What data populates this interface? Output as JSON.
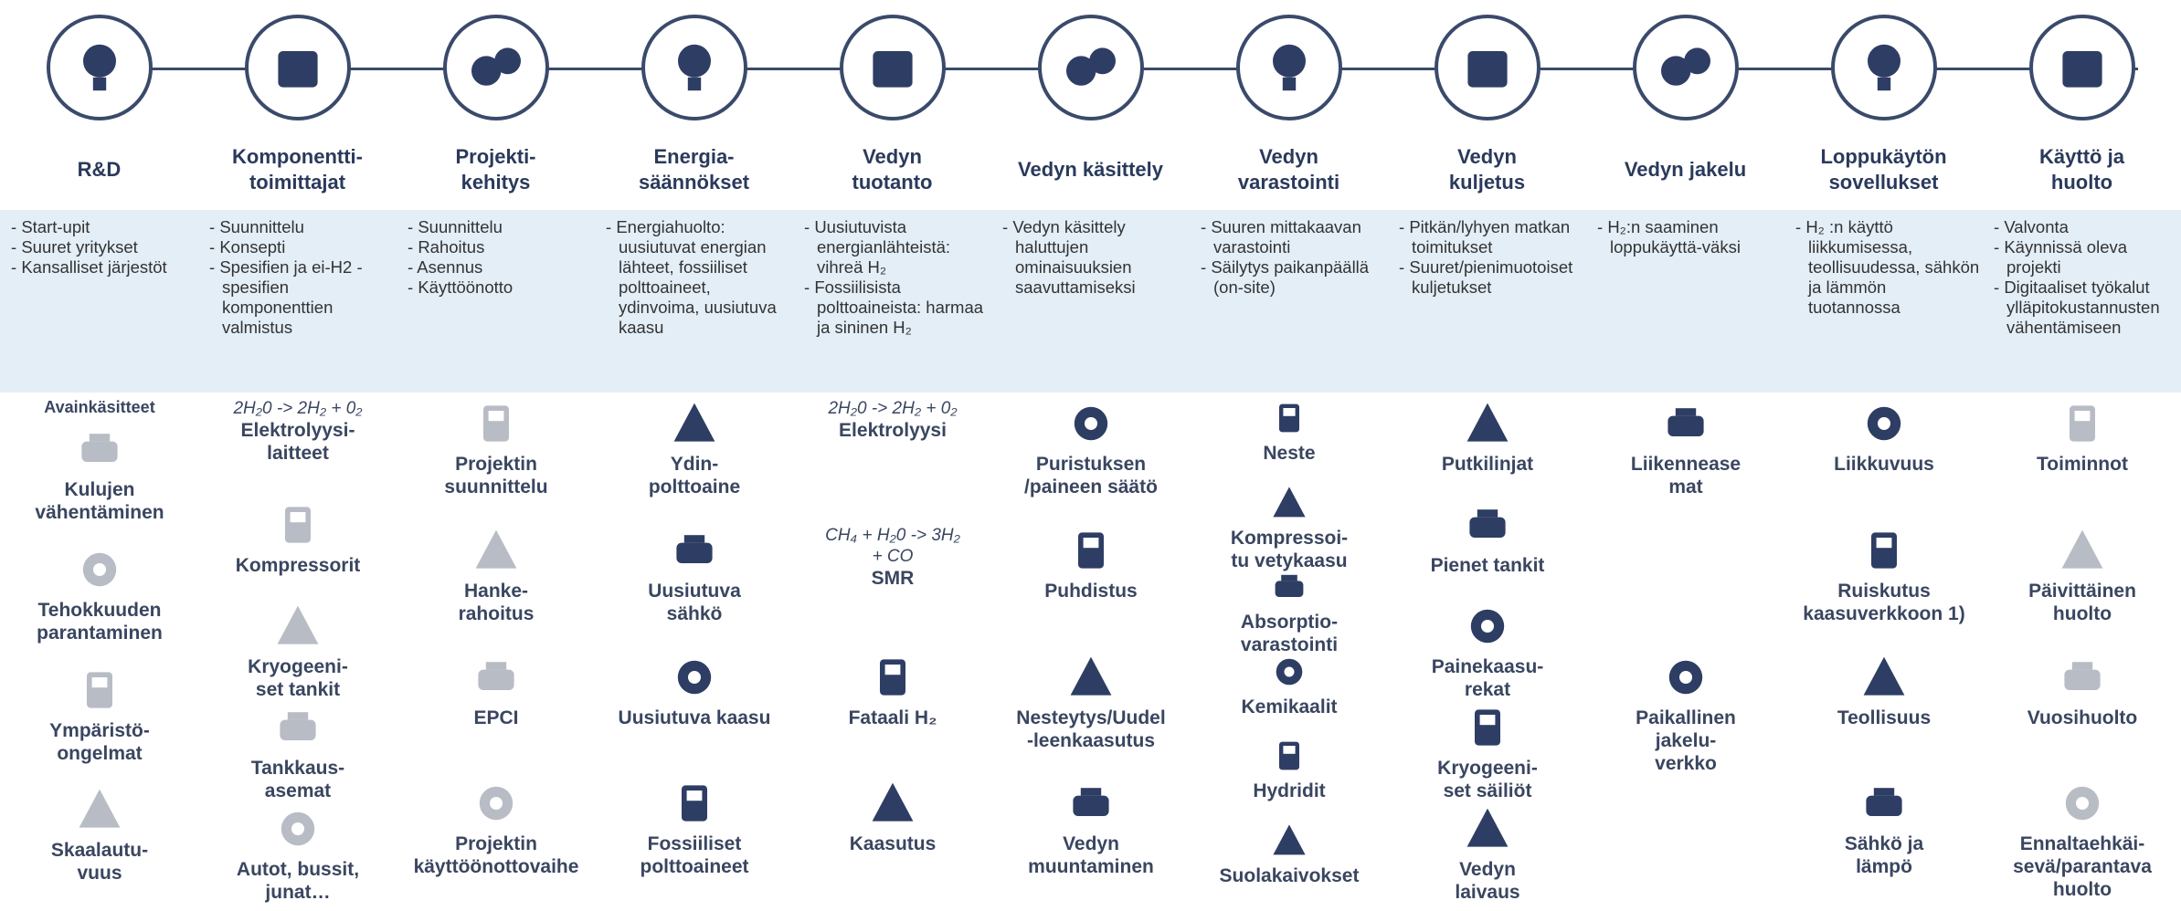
{
  "stages": [
    {
      "title": "R&D",
      "header": "Avainkäsitteet",
      "bullets": [
        "Start-upit",
        "Suuret yritykset",
        "Kansalliset järjestöt"
      ],
      "items": [
        {
          "label": "Kulujen\nvähentäminen"
        },
        {
          "label": "Tehokkuuden\nparantaminen"
        },
        {
          "label": "Ympäristö-\nongelmat"
        },
        {
          "label": "Skaalautu-\nvuus"
        }
      ]
    },
    {
      "title": "Komponentti-\ntoimittajat",
      "bullets": [
        "Suunnittelu",
        "Konsepti",
        "Spesifien ja ei-H2 -spesifien komponenttien valmistus"
      ],
      "items": [
        {
          "formula": "2H₂0 -> 2H₂ + 0₂",
          "label": "Elektrolyysi-\nlaitteet"
        },
        {
          "label": "Kompressorit"
        },
        {
          "label": "Kryogeeni-\nset tankit"
        },
        {
          "label": "Tankkaus-\nasemat"
        },
        {
          "label": "Autot, bussit,\njunat…"
        }
      ]
    },
    {
      "title": "Projekti-\nkehitys",
      "bullets": [
        "Suunnittelu",
        "Rahoitus",
        "Asennus",
        "Käyttöönotto"
      ],
      "items": [
        {
          "label": "Projektin\nsuunnittelu"
        },
        {
          "label": "Hanke-\nrahoitus"
        },
        {
          "label": "EPCI"
        },
        {
          "label": "Projektin\nkäyttöönottovaihe"
        }
      ]
    },
    {
      "title": "Energia-\nsäännökset",
      "bullets": [
        "Energiahuolto: uusiutuvat energian lähteet, fossiiliset polttoaineet, ydinvoima, uusiutuva kaasu"
      ],
      "items": [
        {
          "label": "Ydin-\npolttoaine"
        },
        {
          "label": "Uusiutuva\nsähkö"
        },
        {
          "label": "Uusiutuva kaasu"
        },
        {
          "label": "Fossiiliset\npolttoaineet"
        }
      ]
    },
    {
      "title": "Vedyn\ntuotanto",
      "bullets": [
        "Uusiutuvista energianlähteistä: vihreä H₂",
        "Fossiilisista polttoaineista: harmaa ja sininen H₂"
      ],
      "items": [
        {
          "formula": "2H₂0 -> 2H₂ + 0₂",
          "label": "Elektrolyysi"
        },
        {
          "formula": "CH₄ + H₂0 -> 3H₂\n+ CO",
          "label": "SMR"
        },
        {
          "label": "Fataali H₂"
        },
        {
          "label": "Kaasutus"
        }
      ]
    },
    {
      "title": "Vedyn käsittely",
      "bullets": [
        "Vedyn käsittely haluttujen ominaisuuksien saavuttamiseksi"
      ],
      "items": [
        {
          "label": "Puristuksen\n/paineen säätö"
        },
        {
          "label": "Puhdistus"
        },
        {
          "label": "Nesteytys/Uudel\n-leenkaasutus"
        },
        {
          "label": "Vedyn\nmuuntaminen"
        }
      ]
    },
    {
      "title": "Vedyn\nvarastointi",
      "bullets": [
        "Suuren mittakaavan varastointi",
        "Säilytys paikanpäällä (on-site)"
      ],
      "items": [
        {
          "label": "Neste"
        },
        {
          "label": "Kompressoi-\ntu vetykaasu"
        },
        {
          "label": "Absorptio-\nvarastointi"
        },
        {
          "label": "Kemikaalit"
        },
        {
          "label": "Hydridit"
        },
        {
          "label": "Suolakaivokset"
        }
      ]
    },
    {
      "title": "Vedyn\nkuljetus",
      "bullets": [
        "Pitkän/lyhyen matkan toimitukset",
        "Suuret/pienimuotoiset kuljetukset"
      ],
      "items": [
        {
          "label": "Putkilinjat"
        },
        {
          "label": "Pienet tankit"
        },
        {
          "label": "Painekaasu-\nrekat"
        },
        {
          "label": "Kryogeeni-\nset säiliöt"
        },
        {
          "label": "Vedyn\nlaivaus"
        }
      ]
    },
    {
      "title": "Vedyn jakelu",
      "bullets": [
        "H₂:n saaminen loppukäyttä-väksi"
      ],
      "items": [
        {
          "label": "Liikennease\nmat"
        },
        {
          "label": "Paikallinen\njakelu-\nverkko"
        }
      ]
    },
    {
      "title": "Loppukäytön\nsovellukset",
      "bullets": [
        "H₂ :n käyttö liikkumisessa, teollisuudessa, sähkön ja lämmön tuotannossa"
      ],
      "items": [
        {
          "label": "Liikkuvuus"
        },
        {
          "label": "Ruiskutus\nkaasuverkkoon 1)"
        },
        {
          "label": "Teollisuus"
        },
        {
          "label": "Sähkö ja\nlämpö"
        }
      ]
    },
    {
      "title": "Käyttö ja\nhuolto",
      "bullets": [
        "Valvonta",
        "Käynnissä oleva projekti",
        "Digitaaliset työkalut ylläpitokustannusten vähentämiseen"
      ],
      "items": [
        {
          "label": "Toiminnot"
        },
        {
          "label": "Päivittäinen\nhuolto"
        },
        {
          "label": "Vuosihuolto"
        },
        {
          "label": "Ennaltaehkäi-\nsevä/parantava\nhuolto"
        }
      ]
    }
  ]
}
